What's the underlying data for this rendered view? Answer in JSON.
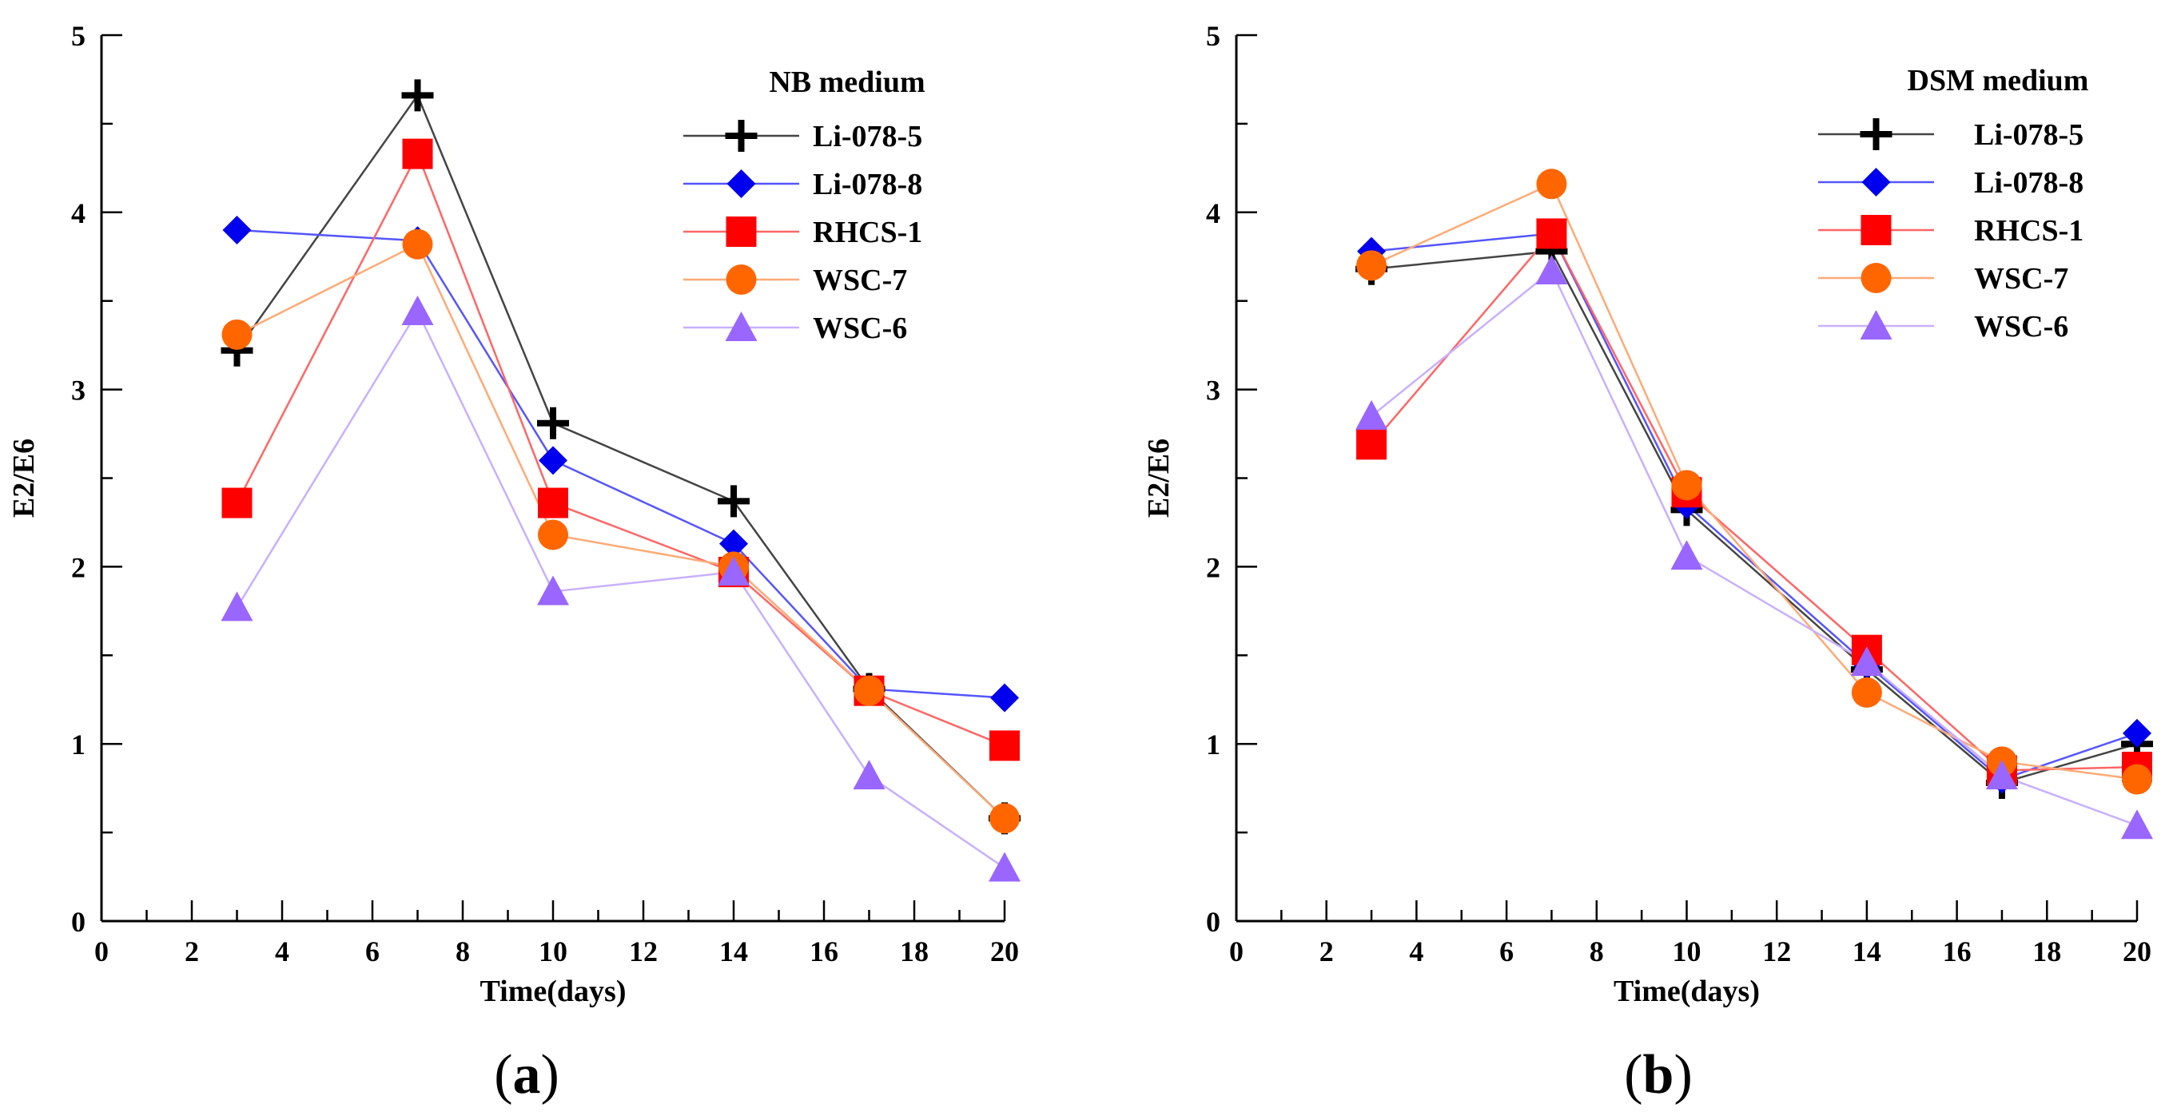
{
  "chart_data": [
    {
      "type": "line",
      "panel": "a",
      "title": "NB medium",
      "xlabel": "Time(days)",
      "ylabel": "E2/E6",
      "xlim": [
        0,
        20
      ],
      "ylim": [
        0,
        5
      ],
      "xticks": [
        0,
        2,
        4,
        6,
        8,
        10,
        12,
        14,
        16,
        18,
        20
      ],
      "yticks": [
        0,
        1,
        2,
        3,
        4,
        5
      ],
      "grid": false,
      "legend_position": "top-right",
      "x": [
        3,
        7,
        10,
        14,
        17,
        20
      ],
      "series": [
        {
          "name": "Li-078-5",
          "marker": "plus",
          "color": "#000000",
          "values": [
            3.22,
            4.66,
            2.81,
            2.37,
            1.31,
            0.58
          ]
        },
        {
          "name": "Li-078-8",
          "marker": "diamond",
          "color": "#0000ee",
          "values": [
            3.9,
            3.84,
            2.6,
            2.13,
            1.31,
            1.26
          ]
        },
        {
          "name": "RHCS-1",
          "marker": "square",
          "color": "#ff0000",
          "values": [
            2.36,
            4.33,
            2.36,
            1.97,
            1.3,
            0.99
          ]
        },
        {
          "name": "WSC-7",
          "marker": "circle",
          "color": "#ff6600",
          "values": [
            3.31,
            3.82,
            2.18,
            2.0,
            1.3,
            0.58
          ]
        },
        {
          "name": "WSC-6",
          "marker": "triangle",
          "color": "#9966ff",
          "values": [
            1.77,
            3.44,
            1.86,
            1.97,
            0.82,
            0.3
          ]
        }
      ]
    },
    {
      "type": "line",
      "panel": "b",
      "title": "DSM medium",
      "xlabel": "Time(days)",
      "ylabel": "E2/E6",
      "xlim": [
        0,
        20
      ],
      "ylim": [
        0,
        5
      ],
      "xticks": [
        0,
        2,
        4,
        6,
        8,
        10,
        12,
        14,
        16,
        18,
        20
      ],
      "yticks": [
        0,
        1,
        2,
        3,
        4,
        5
      ],
      "grid": false,
      "legend_position": "top-right",
      "x": [
        3,
        7,
        10,
        14,
        17,
        20
      ],
      "series": [
        {
          "name": "Li-078-5",
          "marker": "plus",
          "color": "#000000",
          "values": [
            3.68,
            3.78,
            2.32,
            1.42,
            0.78,
            1.0
          ]
        },
        {
          "name": "Li-078-8",
          "marker": "diamond",
          "color": "#0000ee",
          "values": [
            3.78,
            3.88,
            2.35,
            1.45,
            0.8,
            1.06
          ]
        },
        {
          "name": "RHCS-1",
          "marker": "square",
          "color": "#ff0000",
          "values": [
            2.69,
            3.88,
            2.42,
            1.53,
            0.85,
            0.87
          ]
        },
        {
          "name": "WSC-7",
          "marker": "circle",
          "color": "#ff6600",
          "values": [
            3.7,
            4.16,
            2.46,
            1.29,
            0.9,
            0.8
          ]
        },
        {
          "name": "WSC-6",
          "marker": "triangle",
          "color": "#9966ff",
          "values": [
            2.85,
            3.67,
            2.06,
            1.46,
            0.82,
            0.54
          ]
        }
      ]
    }
  ],
  "panel_labels": [
    "(a)",
    "(b)"
  ]
}
